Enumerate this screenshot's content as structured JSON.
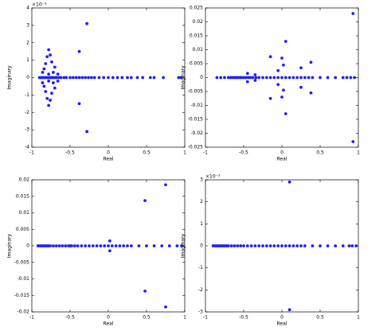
{
  "chart_data": [
    {
      "type": "scatter",
      "xlabel": "Real",
      "ylabel": "Imaginary",
      "y_exponent": "×10⁻³",
      "color": "#1f1fff",
      "xlim": [
        -1,
        1
      ],
      "xticks": [
        -1,
        -0.5,
        0,
        0.5,
        1
      ],
      "ylim": [
        -4,
        4
      ],
      "yticks": [
        -4,
        -3,
        -2,
        -1,
        0,
        1,
        2,
        3,
        4
      ],
      "x": [
        -0.28,
        -0.28,
        -0.38,
        -0.38,
        -0.78,
        -0.78,
        -0.76,
        -0.76,
        -0.8,
        -0.8,
        -0.74,
        -0.74,
        -0.82,
        -0.82,
        -0.7,
        -0.7,
        -0.84,
        -0.84,
        -0.72,
        -0.72,
        -0.78,
        -0.78,
        -0.86,
        -0.86,
        -0.66,
        -0.66,
        -0.9,
        -0.88,
        -0.86,
        -0.84,
        -0.82,
        -0.8,
        -0.78,
        -0.76,
        -0.74,
        -0.72,
        -0.7,
        -0.68,
        -0.65,
        -0.62,
        -0.58,
        -0.55,
        -0.5,
        -0.46,
        -0.42,
        -0.38,
        -0.34,
        -0.3,
        -0.26,
        -0.22,
        -0.18,
        -0.12,
        -0.06,
        0,
        0.06,
        0.12,
        0.18,
        0.25,
        0.3,
        0.38,
        0.45,
        0.55,
        0.6,
        0.72,
        0.92,
        0.95
      ],
      "values": [
        3.1,
        -3.1,
        1.5,
        -1.5,
        1.6,
        -1.6,
        1.3,
        -1.3,
        1.2,
        -1.2,
        0.9,
        -0.9,
        0.8,
        -0.8,
        0.6,
        -0.6,
        0.5,
        -0.5,
        0.3,
        -0.3,
        0.2,
        -0.2,
        0.3,
        -0.3,
        0.2,
        -0.2,
        0,
        0,
        0,
        0,
        0,
        0,
        0,
        0,
        0,
        0,
        0,
        0,
        0,
        0,
        0,
        0,
        0,
        0,
        0,
        0,
        0,
        0,
        0,
        0,
        0,
        0,
        0,
        0,
        0,
        0,
        0,
        0,
        0,
        0,
        0,
        0,
        0,
        0,
        0,
        0
      ]
    },
    {
      "type": "scatter",
      "xlabel": "Real",
      "ylabel": "Imaginary",
      "color": "#1f1fff",
      "xlim": [
        -1,
        1
      ],
      "xticks": [
        -1,
        -0.5,
        0,
        0.5,
        1
      ],
      "ylim": [
        -0.025,
        0.025
      ],
      "yticks": [
        -0.025,
        -0.02,
        -0.015,
        -0.01,
        -0.005,
        0,
        0.005,
        0.01,
        0.015,
        0.02,
        0.025
      ],
      "x": [
        0.93,
        0.93,
        0.05,
        0.05,
        -0.15,
        -0.15,
        0,
        0,
        0.38,
        0.38,
        0.25,
        0.25,
        0.02,
        0.02,
        -0.45,
        -0.45,
        -0.35,
        -0.35,
        -0.05,
        -0.05,
        -0.85,
        -0.8,
        -0.75,
        -0.7,
        -0.67,
        -0.65,
        -0.63,
        -0.61,
        -0.59,
        -0.57,
        -0.55,
        -0.53,
        -0.5,
        -0.47,
        -0.44,
        -0.41,
        -0.38,
        -0.34,
        -0.3,
        -0.25,
        -0.2,
        -0.15,
        -0.1,
        -0.05,
        0,
        0.05,
        0.1,
        0.15,
        0.2,
        0.25,
        0.3,
        0.35,
        0.4,
        0.5,
        0.6,
        0.7,
        0.8,
        0.85,
        0.9,
        0.95
      ],
      "values": [
        0.023,
        -0.023,
        0.013,
        -0.013,
        0.0075,
        -0.0075,
        0.007,
        -0.007,
        0.0055,
        -0.0055,
        0.0035,
        -0.0035,
        0.0045,
        -0.0045,
        0.0015,
        -0.0015,
        0.001,
        -0.001,
        0.0025,
        -0.0025,
        0,
        0,
        0,
        0,
        0,
        0,
        0,
        0,
        0,
        0,
        0,
        0,
        0,
        0,
        0,
        0,
        0,
        0,
        0,
        0,
        0,
        0,
        0,
        0,
        0,
        0,
        0,
        0,
        0,
        0,
        0,
        0,
        0,
        0,
        0,
        0,
        0,
        0,
        0,
        0
      ]
    },
    {
      "type": "scatter",
      "xlabel": "Real",
      "ylabel": "Imaginary",
      "color": "#1f1fff",
      "xlim": [
        -1,
        1
      ],
      "xticks": [
        -1,
        -0.5,
        0,
        0.5,
        1
      ],
      "ylim": [
        -0.02,
        0.02
      ],
      "yticks": [
        -0.02,
        -0.015,
        -0.01,
        -0.005,
        0,
        0.005,
        0.01,
        0.015,
        0.02
      ],
      "x": [
        0.75,
        0.75,
        0.48,
        0.48,
        0.02,
        0.02,
        -0.92,
        -0.9,
        -0.88,
        -0.86,
        -0.84,
        -0.82,
        -0.8,
        -0.78,
        -0.76,
        -0.72,
        -0.68,
        -0.64,
        -0.6,
        -0.56,
        -0.52,
        -0.5,
        -0.48,
        -0.44,
        -0.4,
        -0.35,
        -0.3,
        -0.25,
        -0.2,
        -0.15,
        -0.1,
        -0.05,
        0,
        0.05,
        0.1,
        0.15,
        0.2,
        0.25,
        0.3,
        0.4,
        0.5,
        0.6,
        0.7,
        0.8,
        0.9,
        0.96
      ],
      "values": [
        0.0185,
        -0.0185,
        0.0137,
        -0.0137,
        0.0015,
        -0.0015,
        0,
        0,
        0,
        0,
        0,
        0,
        0,
        0,
        0,
        0,
        0,
        0,
        0,
        0,
        0,
        0,
        0,
        0,
        0,
        0,
        0,
        0,
        0,
        0,
        0,
        0,
        0,
        0,
        0,
        0,
        0,
        0,
        0,
        0,
        0,
        0,
        0,
        0,
        0,
        0
      ]
    },
    {
      "type": "scatter",
      "xlabel": "Real",
      "ylabel": "Imaginary",
      "y_exponent": "×10⁻³",
      "color": "#1f1fff",
      "xlim": [
        -1,
        1
      ],
      "xticks": [
        -1,
        -0.5,
        0,
        0.5,
        1
      ],
      "ylim": [
        -3,
        3
      ],
      "yticks": [
        -3,
        -2,
        -1,
        0,
        1,
        2,
        3
      ],
      "x": [
        0.1,
        0.1,
        -0.9,
        -0.88,
        -0.86,
        -0.84,
        -0.82,
        -0.8,
        -0.78,
        -0.76,
        -0.74,
        -0.72,
        -0.7,
        -0.66,
        -0.62,
        -0.58,
        -0.54,
        -0.5,
        -0.45,
        -0.4,
        -0.35,
        -0.3,
        -0.25,
        -0.2,
        -0.15,
        -0.1,
        -0.05,
        0,
        0.05,
        0.1,
        0.15,
        0.2,
        0.25,
        0.3,
        0.4,
        0.5,
        0.6,
        0.7,
        0.8,
        0.88,
        0.92,
        0.97
      ],
      "values": [
        2.9,
        -2.9,
        0,
        0,
        0,
        0,
        0,
        0,
        0,
        0,
        0,
        0,
        0,
        0,
        0,
        0,
        0,
        0,
        0,
        0,
        0,
        0,
        0,
        0,
        0,
        0,
        0,
        0,
        0,
        0,
        0,
        0,
        0,
        0,
        0,
        0,
        0,
        0,
        0,
        0,
        0,
        0
      ]
    }
  ]
}
